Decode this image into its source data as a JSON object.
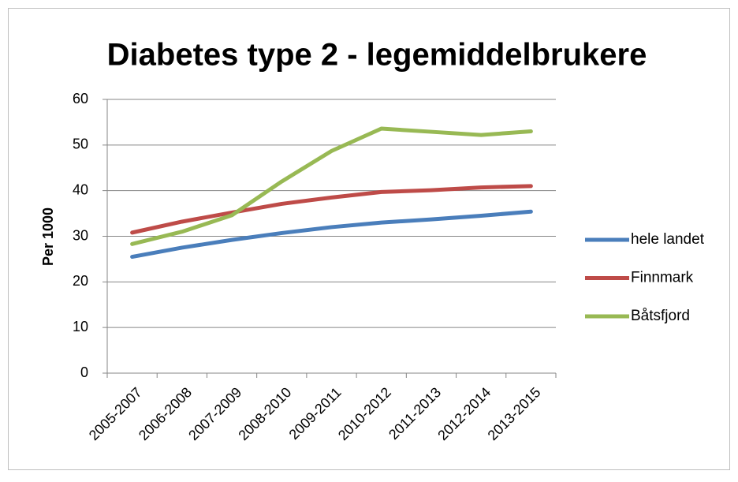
{
  "chart_data": {
    "type": "line",
    "title": "Diabetes type 2 - legemiddelbrukere",
    "ylabel": "Per 1000",
    "categories": [
      "2005-2007",
      "2006-2008",
      "2007-2009",
      "2008-2010",
      "2009-2011",
      "2010-2012",
      "2011-2013",
      "2012-2014",
      "2013-2015"
    ],
    "series": [
      {
        "name": "hele landet",
        "color": "#4a7ebb",
        "values": [
          25.5,
          27.5,
          29.2,
          30.7,
          32.0,
          33.0,
          33.7,
          34.5,
          35.4
        ]
      },
      {
        "name": "Finnmark",
        "color": "#be4b48",
        "values": [
          30.8,
          33.2,
          35.2,
          37.1,
          38.5,
          39.7,
          40.1,
          40.7,
          41.0
        ]
      },
      {
        "name": "Båtsfjord",
        "color": "#98b954",
        "values": [
          28.3,
          31.0,
          34.6,
          42.0,
          48.7,
          53.6,
          52.9,
          52.2,
          53.0
        ]
      }
    ],
    "ylim": [
      0,
      60
    ],
    "yticks": [
      0,
      10,
      20,
      30,
      40,
      50,
      60
    ],
    "grid": true,
    "legend": "right"
  }
}
